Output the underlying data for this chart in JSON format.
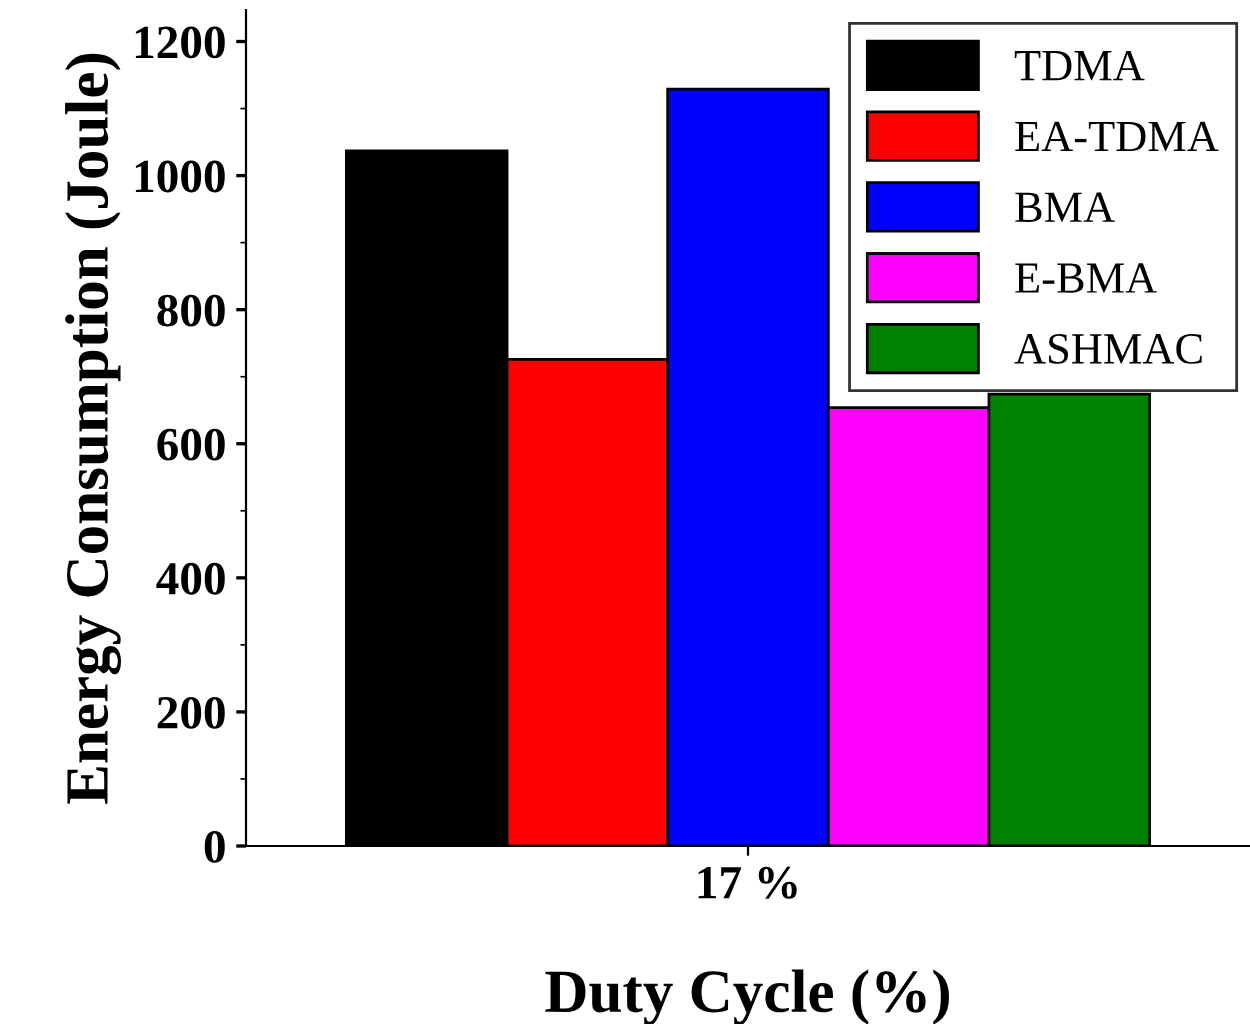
{
  "chart_data": {
    "type": "bar",
    "xlabel": "Duty Cycle (%)",
    "ylabel": "Energy Consumption (Joule)",
    "categories": [
      "17 %"
    ],
    "series": [
      {
        "name": "TDMA",
        "color": "#000000",
        "values": [
          1037
        ]
      },
      {
        "name": "EA-TDMA",
        "color": "#ff0000",
        "values": [
          726
        ]
      },
      {
        "name": "BMA",
        "color": "#0000ff",
        "values": [
          1129
        ]
      },
      {
        "name": "E-BMA",
        "color": "#ff00ff",
        "values": [
          654
        ]
      },
      {
        "name": "ASHMAC",
        "color": "#008000",
        "values": [
          674
        ]
      }
    ],
    "ylim": [
      0,
      1247
    ],
    "yticks": [
      0,
      200,
      400,
      600,
      800,
      1000,
      1200
    ],
    "grid": false,
    "legend": "top right"
  }
}
